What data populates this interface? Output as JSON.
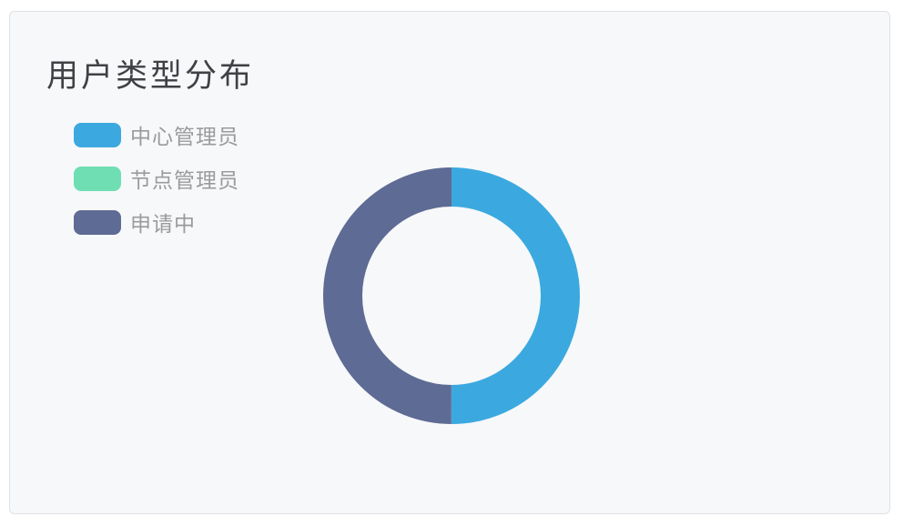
{
  "card": {
    "title": "用户类型分布"
  },
  "colors": {
    "card_background": "#f7f8fa",
    "card_border": "#dfe1e6",
    "title_text": "#3f4145",
    "legend_text": "#9b9b9b",
    "series_blue": "#3ba9df",
    "series_green": "#6fdfb3",
    "series_slate": "#5e6b94"
  },
  "chart_data": {
    "type": "pie",
    "title": "用户类型分布",
    "donut": true,
    "inner_radius_ratio": 0.7,
    "start_angle_deg": 90,
    "direction": "clockwise",
    "legend_position": "top-left-vertical",
    "values_unit": "percent",
    "series": [
      {
        "name": "中心管理员",
        "value": 50,
        "color": "#3ba9df"
      },
      {
        "name": "节点管理员",
        "value": 0,
        "color": "#6fdfb3"
      },
      {
        "name": "申请中",
        "value": 50,
        "color": "#5e6b94"
      }
    ]
  }
}
